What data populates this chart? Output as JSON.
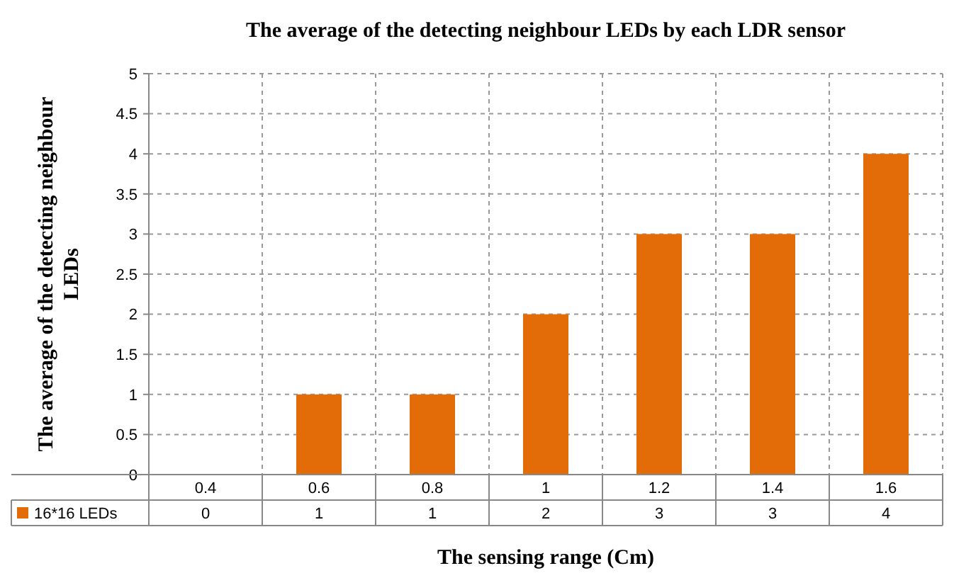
{
  "chart_data": {
    "type": "bar",
    "title": "The average of the detecting neighbour LEDs by each LDR sensor",
    "xlabel": "The sensing range (Cm)",
    "ylabel": "The average of the detecting neighbour LEDs",
    "categories": [
      "0.4",
      "0.6",
      "0.8",
      "1",
      "1.2",
      "1.4",
      "1.6"
    ],
    "series": [
      {
        "name": "16*16 LEDs",
        "color": "#e36c09",
        "values": [
          0,
          1,
          1,
          2,
          3,
          3,
          4
        ]
      }
    ],
    "ylim": [
      0,
      5
    ],
    "yticks": [
      0,
      0.5,
      1,
      1.5,
      2,
      2.5,
      3,
      3.5,
      4,
      4.5,
      5
    ],
    "grid": true,
    "data_labels": true,
    "legend": "bottom left"
  }
}
